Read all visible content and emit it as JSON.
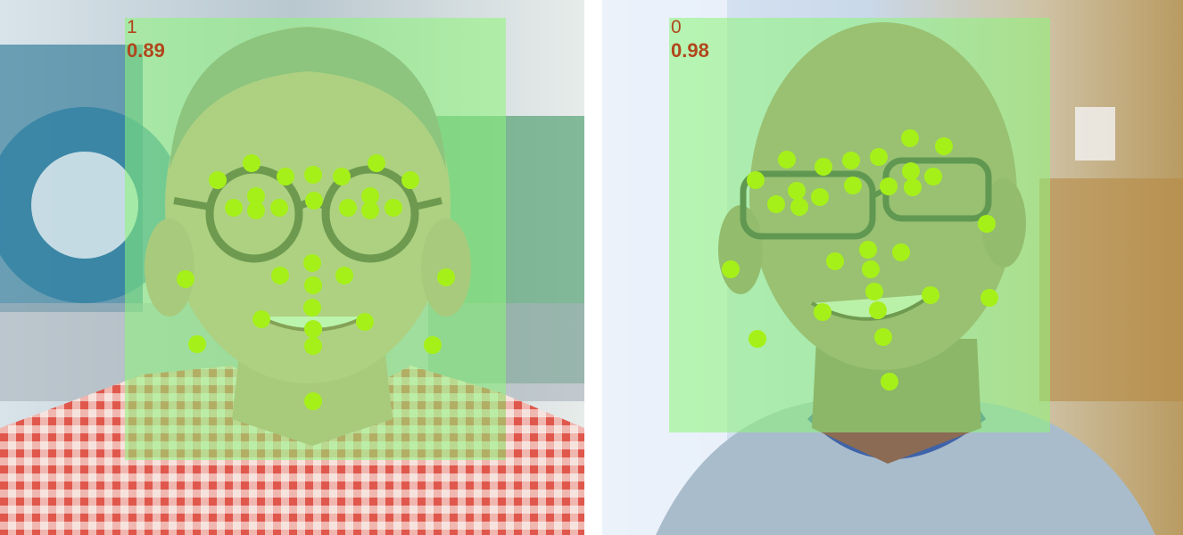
{
  "colors": {
    "box_fill": "#8cf578",
    "landmark": "#a6f01a",
    "label_text": "#b1461c"
  },
  "faces": [
    {
      "id": "left",
      "label": "1",
      "score": "0.89",
      "landmark_count": 33
    },
    {
      "id": "right",
      "label": "0",
      "score": "0.98",
      "landmark_count": 33
    }
  ]
}
